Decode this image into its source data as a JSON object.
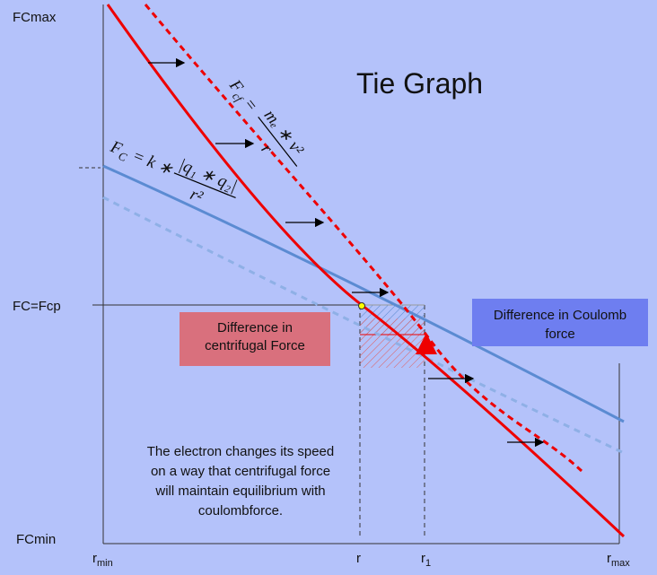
{
  "title": "Tie Graph",
  "axis": {
    "y_top": "FCmax",
    "y_mid": "FC=Fcp",
    "y_bottom": "FCmin",
    "x_labels": [
      {
        "text": "r",
        "sub": "min"
      },
      {
        "text": "r"
      },
      {
        "text": "r",
        "sub": "1"
      },
      {
        "text": "r",
        "sub": "max"
      }
    ]
  },
  "boxes": {
    "centrifugal": [
      "Difference in",
      "centrifugal Force"
    ],
    "coulomb": [
      "Difference in Coulomb",
      "force"
    ]
  },
  "note": [
    "The electron changes its speed",
    "on a way that centrifugal force",
    "will maintain equilibrium with",
    "coulombforce."
  ],
  "formulas": {
    "centrifugal": {
      "lhs": "F",
      "lhs_sub": "cf",
      "eq": "=",
      "numerator": "mₑ ∗ v²",
      "denominator": "r"
    },
    "coulomb": {
      "lhs": "F",
      "lhs_sub": "C",
      "eq": "= k ∗",
      "numerator": "|q₁ ∗ q₂|",
      "denominator": "r²"
    }
  }
}
